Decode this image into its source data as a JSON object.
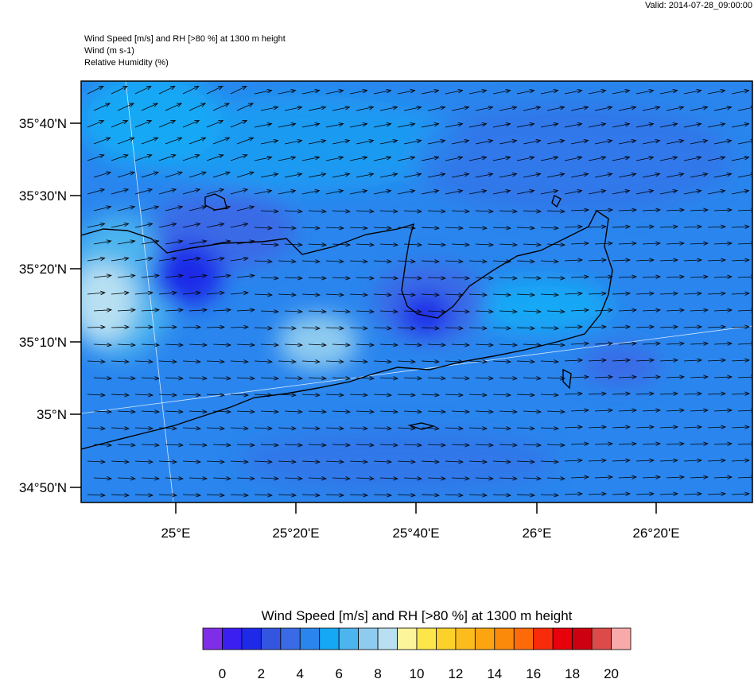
{
  "valid": "Valid: 2014-07-28_09:00:00",
  "header": [
    "Wind Speed [m/s] and RH [>80 %] at 1300 m height",
    "Wind   (m s-1)",
    "Relative Humidity   (%)"
  ],
  "lat_ticks": [
    "35°40'N",
    "35°30'N",
    "35°20'N",
    "35°10'N",
    "35°N",
    "34°50'N"
  ],
  "lon_ticks": [
    "25°E",
    "25°20'E",
    "25°40'E",
    "26°E",
    "26°20'E"
  ],
  "colorbar": {
    "title": "Wind Speed [m/s] and RH [>80 %] at 1300 m height",
    "labels": [
      0,
      2,
      4,
      6,
      8,
      10,
      12,
      14,
      16,
      18,
      20
    ],
    "colors": [
      "#7f2ee8",
      "#3a1ff0",
      "#1e2ae8",
      "#3355e0",
      "#3a6ae6",
      "#2a86ee",
      "#14a8f5",
      "#4cb4ef",
      "#8ecbef",
      "#b8e0f2",
      "#fdf59a",
      "#fde64a",
      "#fcd22a",
      "#fcbc1e",
      "#fca510",
      "#fc8a0a",
      "#fc6a0a",
      "#f82c0a",
      "#e8000a",
      "#cc0010",
      "#dc4a4a",
      "#f8aaaa"
    ]
  }
}
